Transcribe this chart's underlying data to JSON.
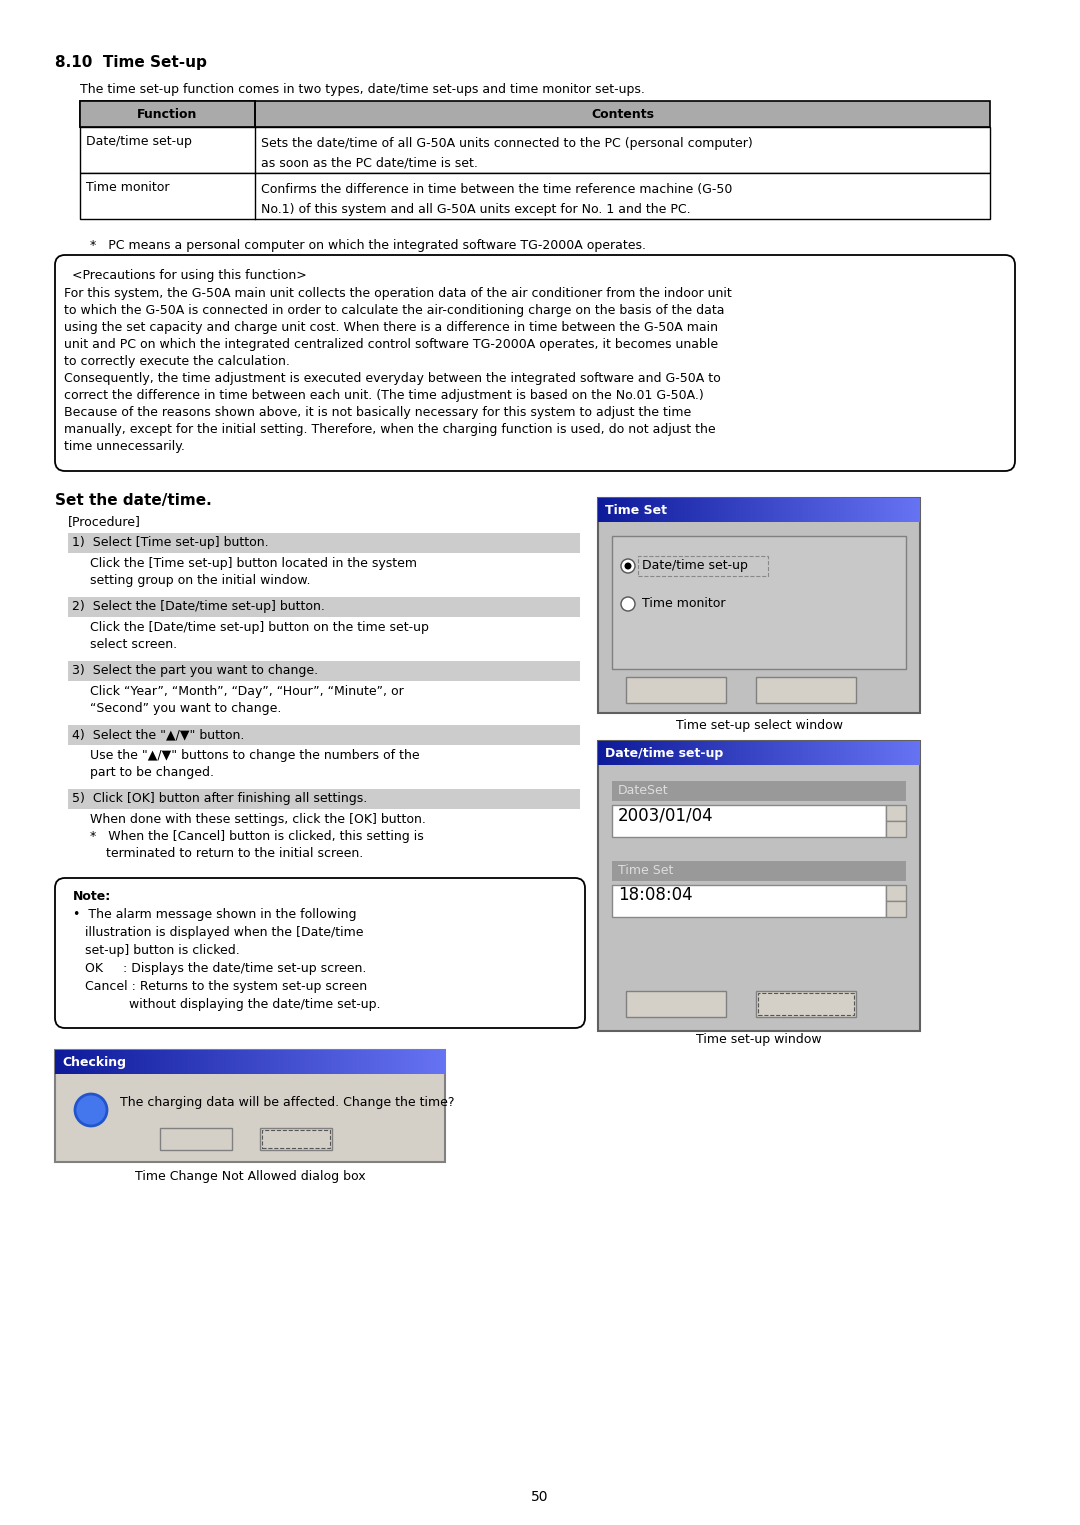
{
  "title": "8.10  Time Set-up",
  "bg_color": "#ffffff",
  "text_color": "#000000",
  "intro_text": "The time set-up function comes in two types, date/time set-ups and time monitor set-ups.",
  "table_headers": [
    "Function",
    "Contents"
  ],
  "table_rows": [
    [
      "Date/time set-up",
      "Sets the date/time of all G-50A units connected to the PC (personal computer)\nas soon as the PC date/time is set."
    ],
    [
      "Time monitor",
      "Confirms the difference in time between the time reference machine (G-50\nNo.1) of this system and all G-50A units except for No. 1 and the PC."
    ]
  ],
  "footnote": "*   PC means a personal computer on which the integrated software TG-2000A operates.",
  "precaution_title": "<Precautions for using this function>",
  "precaution_lines": [
    "For this system, the G-50A main unit collects the operation data of the air conditioner from the indoor unit",
    "to which the G-50A is connected in order to calculate the air-conditioning charge on the basis of the data",
    "using the set capacity and charge unit cost. When there is a difference in time between the G-50A main",
    "unit and PC on which the integrated centralized control software TG-2000A operates, it becomes unable",
    "to correctly execute the calculation.",
    "Consequently, the time adjustment is executed everyday between the integrated software and G-50A to",
    "correct the difference in time between each unit. (The time adjustment is based on the No.01 G-50A.)",
    "Because of the reasons shown above, it is not basically necessary for this system to adjust the time",
    "manually, except for the initial setting. Therefore, when the charging function is used, do not adjust the",
    "time unnecessarily."
  ],
  "set_date_title": "Set the date/time.",
  "procedure_label": "[Procedure]",
  "steps": [
    {
      "header": "1)  Select [Time set-up] button.",
      "body": [
        "Click the [Time set-up] button located in the system",
        "setting group on the initial window."
      ]
    },
    {
      "header": "2)  Select the [Date/time set-up] button.",
      "body": [
        "Click the [Date/time set-up] button on the time set-up",
        "select screen."
      ]
    },
    {
      "header": "3)  Select the part you want to change.",
      "body": [
        "Click “Year”, “Month”, “Day”, “Hour”, “Minute”, or",
        "“Second” you want to change."
      ]
    },
    {
      "header": "4)  Select the \"▲/▼\" button.",
      "body": [
        "Use the \"▲/▼\" buttons to change the numbers of the",
        "part to be changed."
      ]
    },
    {
      "header": "5)  Click [OK] button after finishing all settings.",
      "body": [
        "When done with these settings, click the [OK] button.",
        "*   When the [Cancel] button is clicked, this setting is",
        "    terminated to return to the initial screen."
      ]
    }
  ],
  "note_lines": [
    "Note:",
    "•  The alarm message shown in the following",
    "   illustration is displayed when the [Date/time",
    "   set-up] button is clicked.",
    "   OK     : Displays the date/time set-up screen.",
    "   Cancel : Returns to the system set-up screen",
    "              without displaying the date/time set-up."
  ],
  "timeset_window_title": "Time Set",
  "timeset_options": [
    "Date/time set-up",
    "Time monitor"
  ],
  "timeset_caption": "Time set-up select window",
  "datetime_window_title": "Date/time set-up",
  "dateset_label": "DateSet",
  "dateset_value": "2003/01/04",
  "timeset_label2": "Time Set",
  "timeset_value": "18:08:04",
  "datetime_caption": "Time set-up window",
  "checking_title": "Checking",
  "checking_text": "The charging data will be affected. Change the time?",
  "checking_caption": "Time Change Not Allowed dialog box",
  "page_number": "50"
}
